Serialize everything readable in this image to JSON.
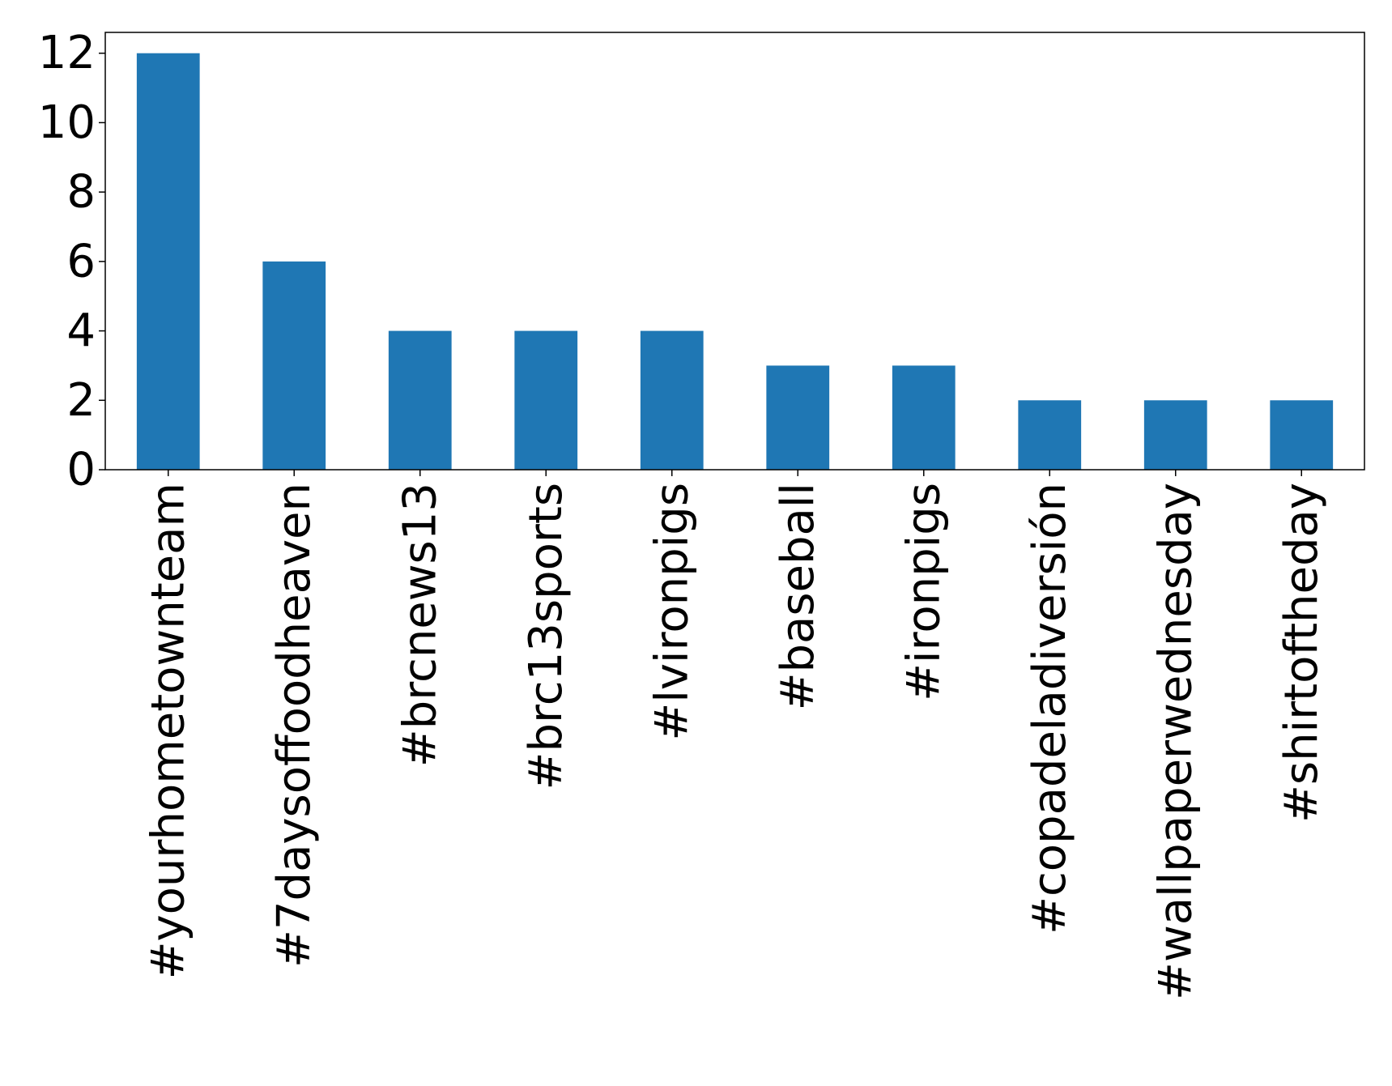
{
  "chart_data": {
    "type": "bar",
    "title": "",
    "xlabel": "",
    "ylabel": "",
    "categories": [
      "#yourhometownteam",
      "#7daysoffoodheaven",
      "#brcnews13",
      "#brc13sports",
      "#lvironpigs",
      "#baseball",
      "#ironpigs",
      "#copadeladiversión",
      "#wallpaperwednesday",
      "#shirtoftheday"
    ],
    "values": [
      12,
      6,
      4,
      4,
      4,
      3,
      3,
      2,
      2,
      2
    ],
    "ylim": [
      0,
      12.6
    ],
    "yticks": [
      0,
      2,
      4,
      6,
      8,
      10,
      12
    ],
    "grid": false,
    "legend": "none",
    "bar_color": "#1f77b4"
  }
}
